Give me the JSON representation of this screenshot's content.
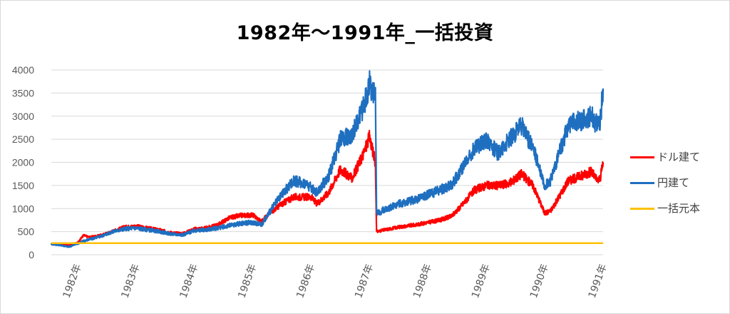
{
  "chart_data": {
    "type": "line",
    "title": "1982年～1991年_一括投資",
    "xlabel": "",
    "ylabel": "",
    "ylim": [
      0,
      4000
    ],
    "y_ticks": [
      "0",
      "500",
      "1000",
      "1500",
      "2000",
      "2500",
      "3000",
      "3500",
      "4000"
    ],
    "x_ticks": [
      "1982年",
      "1983年",
      "1984年",
      "1985年",
      "1986年",
      "1987年",
      "1988年",
      "1989年",
      "1990年",
      "1991年"
    ],
    "xlim": [
      1981.55,
      1991.0
    ],
    "grid": true,
    "legend_position": "right",
    "series": [
      {
        "name": "ドル建て",
        "color": "#ff0000",
        "points": [
          [
            1981.55,
            240
          ],
          [
            1981.7,
            225
          ],
          [
            1981.85,
            200
          ],
          [
            1982.0,
            260
          ],
          [
            1982.1,
            420
          ],
          [
            1982.2,
            380
          ],
          [
            1982.4,
            420
          ],
          [
            1982.6,
            510
          ],
          [
            1982.8,
            600
          ],
          [
            1983.0,
            620
          ],
          [
            1983.2,
            580
          ],
          [
            1983.4,
            540
          ],
          [
            1983.6,
            480
          ],
          [
            1983.8,
            460
          ],
          [
            1984.0,
            560
          ],
          [
            1984.2,
            580
          ],
          [
            1984.4,
            650
          ],
          [
            1984.6,
            800
          ],
          [
            1984.8,
            850
          ],
          [
            1985.0,
            860
          ],
          [
            1985.15,
            720
          ],
          [
            1985.3,
            920
          ],
          [
            1985.5,
            1100
          ],
          [
            1985.7,
            1250
          ],
          [
            1985.9,
            1250
          ],
          [
            1986.0,
            1250
          ],
          [
            1986.1,
            1100
          ],
          [
            1986.3,
            1350
          ],
          [
            1986.5,
            1850
          ],
          [
            1986.7,
            1650
          ],
          [
            1986.9,
            2200
          ],
          [
            1987.0,
            2550
          ],
          [
            1987.1,
            2000
          ],
          [
            1987.12,
            500
          ],
          [
            1987.3,
            550
          ],
          [
            1987.5,
            600
          ],
          [
            1987.8,
            650
          ],
          [
            1988.0,
            700
          ],
          [
            1988.2,
            750
          ],
          [
            1988.4,
            830
          ],
          [
            1988.6,
            1100
          ],
          [
            1988.8,
            1400
          ],
          [
            1989.0,
            1500
          ],
          [
            1989.2,
            1500
          ],
          [
            1989.4,
            1550
          ],
          [
            1989.6,
            1750
          ],
          [
            1989.8,
            1500
          ],
          [
            1990.0,
            900
          ],
          [
            1990.1,
            950
          ],
          [
            1990.2,
            1150
          ],
          [
            1990.4,
            1600
          ],
          [
            1990.6,
            1700
          ],
          [
            1990.8,
            1800
          ],
          [
            1990.9,
            1600
          ],
          [
            1990.95,
            1650
          ],
          [
            1991.0,
            2000
          ]
        ]
      },
      {
        "name": "円建て",
        "color": "#1f6fc0",
        "points": [
          [
            1981.55,
            230
          ],
          [
            1981.7,
            210
          ],
          [
            1981.85,
            170
          ],
          [
            1982.0,
            240
          ],
          [
            1982.1,
            300
          ],
          [
            1982.2,
            330
          ],
          [
            1982.4,
            400
          ],
          [
            1982.6,
            500
          ],
          [
            1982.8,
            560
          ],
          [
            1983.0,
            580
          ],
          [
            1983.2,
            540
          ],
          [
            1983.4,
            500
          ],
          [
            1983.6,
            450
          ],
          [
            1983.8,
            430
          ],
          [
            1984.0,
            520
          ],
          [
            1984.2,
            540
          ],
          [
            1984.4,
            580
          ],
          [
            1984.6,
            630
          ],
          [
            1984.8,
            680
          ],
          [
            1985.0,
            700
          ],
          [
            1985.15,
            650
          ],
          [
            1985.3,
            950
          ],
          [
            1985.5,
            1300
          ],
          [
            1985.7,
            1600
          ],
          [
            1985.9,
            1550
          ],
          [
            1986.0,
            1450
          ],
          [
            1986.1,
            1350
          ],
          [
            1986.3,
            1700
          ],
          [
            1986.5,
            2500
          ],
          [
            1986.7,
            2600
          ],
          [
            1986.9,
            3200
          ],
          [
            1987.0,
            3700
          ],
          [
            1987.1,
            3400
          ],
          [
            1987.12,
            900
          ],
          [
            1987.3,
            1000
          ],
          [
            1987.5,
            1100
          ],
          [
            1987.8,
            1200
          ],
          [
            1988.0,
            1300
          ],
          [
            1988.2,
            1400
          ],
          [
            1988.4,
            1500
          ],
          [
            1988.6,
            1900
          ],
          [
            1988.8,
            2300
          ],
          [
            1989.0,
            2500
          ],
          [
            1989.2,
            2200
          ],
          [
            1989.4,
            2500
          ],
          [
            1989.6,
            2800
          ],
          [
            1989.8,
            2300
          ],
          [
            1990.0,
            1500
          ],
          [
            1990.1,
            1600
          ],
          [
            1990.2,
            2000
          ],
          [
            1990.4,
            2800
          ],
          [
            1990.6,
            2900
          ],
          [
            1990.8,
            3000
          ],
          [
            1990.9,
            2800
          ],
          [
            1990.95,
            2900
          ],
          [
            1991.0,
            3600
          ]
        ]
      },
      {
        "name": "一括元本",
        "color": "#ffc000",
        "points": [
          [
            1981.55,
            250
          ],
          [
            1991.0,
            250
          ]
        ]
      }
    ]
  }
}
